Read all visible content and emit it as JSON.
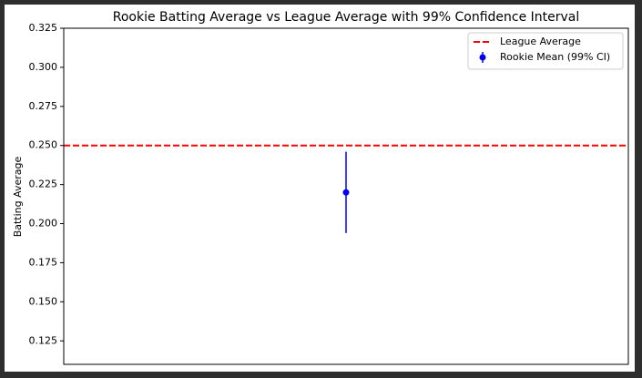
{
  "chart_data": {
    "type": "errorbar",
    "title": "Rookie Batting Average vs League Average with 99% Confidence Interval",
    "ylabel": "Batting Average",
    "ylim": [
      0.11,
      0.325
    ],
    "yticks": [
      {
        "value": 0.125,
        "label": "0.125"
      },
      {
        "value": 0.15,
        "label": "0.150"
      },
      {
        "value": 0.175,
        "label": "0.175"
      },
      {
        "value": 0.2,
        "label": "0.200"
      },
      {
        "value": 0.225,
        "label": "0.225"
      },
      {
        "value": 0.25,
        "label": "0.250"
      },
      {
        "value": 0.275,
        "label": "0.275"
      },
      {
        "value": 0.3,
        "label": "0.300"
      },
      {
        "value": 0.325,
        "label": "0.325"
      }
    ],
    "legend": "upper right",
    "series": [
      {
        "name": "League Average",
        "kind": "hline",
        "color": "#ff0000",
        "values": [
          0.25
        ]
      },
      {
        "name": "Rookie Mean (99% CI)",
        "kind": "point",
        "color": "#0000ff",
        "values": [
          0.22
        ],
        "errors": [
          0.026
        ]
      }
    ]
  }
}
